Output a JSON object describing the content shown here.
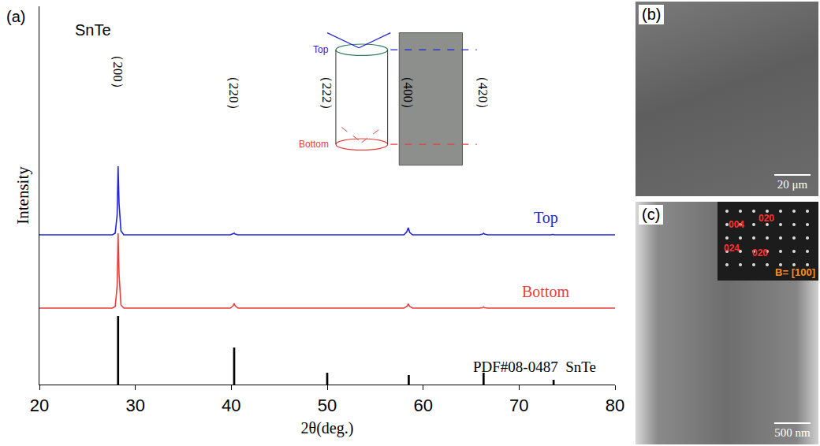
{
  "chart_data": {
    "type": "line",
    "title": "(a)",
    "x_label": "2θ(deg.)",
    "y_label": "Intensity",
    "xlim": [
      20,
      80
    ],
    "xticks": [
      20,
      30,
      40,
      50,
      60,
      70,
      80
    ],
    "ylim": [
      0,
      480
    ],
    "tick_labels": "x",
    "grid": false,
    "series": [
      {
        "name": "Top",
        "type": "line",
        "color": "#2424d8",
        "x": [
          20,
          27.6,
          27.9,
          28.1,
          28.2,
          28.3,
          28.5,
          28.8,
          39.9,
          40.2,
          40.3,
          40.4,
          40.7,
          58.0,
          58.3,
          58.45,
          58.6,
          58.9,
          65.9,
          66.2,
          66.3,
          66.4,
          66.7,
          73.3,
          73.5,
          73.7,
          80
        ],
        "values": [
          190,
          190,
          192,
          215,
          277,
          230,
          195,
          190,
          190,
          191,
          192,
          191,
          190,
          190,
          194,
          199,
          193,
          190,
          190,
          191,
          192,
          191,
          190,
          190,
          190.5,
          190,
          190
        ]
      },
      {
        "name": "Bottom",
        "type": "line",
        "color": "#e8403a",
        "x": [
          20,
          27.6,
          27.9,
          28.1,
          28.2,
          28.3,
          28.5,
          28.8,
          39.9,
          40.2,
          40.3,
          40.4,
          40.7,
          58.0,
          58.3,
          58.45,
          58.6,
          58.9,
          65.9,
          66.2,
          66.3,
          66.4,
          66.7,
          73.3,
          73.5,
          73.7,
          80
        ],
        "values": [
          97,
          97,
          99,
          125,
          192,
          140,
          101,
          97,
          97,
          100,
          103,
          100,
          97,
          97,
          99,
          102,
          99,
          97,
          97,
          97.5,
          98.5,
          97.5,
          97,
          97,
          97.3,
          97,
          97
        ]
      },
      {
        "name": "PDF#08-0487  SnTe",
        "type": "bar",
        "color": "#000000",
        "x": [
          28.2,
          40.3,
          50.0,
          58.5,
          66.3,
          73.6
        ],
        "values": [
          87,
          47,
          15,
          12,
          15,
          6
        ]
      }
    ],
    "annotations": [
      {
        "text": "SnTe",
        "x": 23.5,
        "y": 450
      },
      {
        "text": "（200）",
        "x": 28.2,
        "y": 397
      },
      {
        "text": "（220）",
        "x": 40.3,
        "y": 370
      },
      {
        "text": "（222）",
        "x": 50.0,
        "y": 370
      },
      {
        "text": "（400）",
        "x": 58.5,
        "y": 370
      },
      {
        "text": "（420）",
        "x": 66.3,
        "y": 370
      }
    ],
    "inset_labels": [
      "Top",
      "Bottom"
    ]
  },
  "images": [
    {
      "label": "(b)",
      "scale_bar": "20 μm"
    },
    {
      "label": "(c)",
      "scale_bar": "500 nm",
      "diffraction": {
        "spots": [
          "004",
          "020",
          "024",
          "020"
        ],
        "zone_axis": "B= [100]"
      }
    }
  ]
}
